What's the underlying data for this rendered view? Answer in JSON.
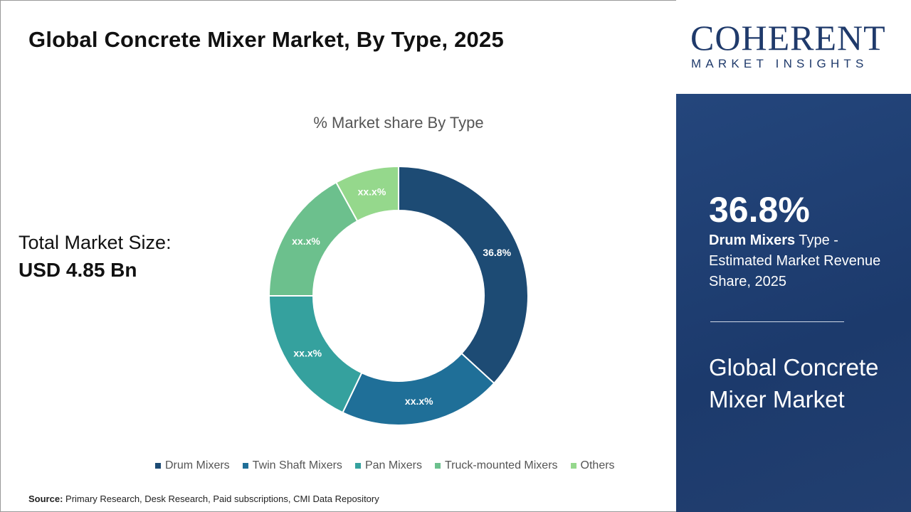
{
  "title": "Global Concrete Mixer Market, By Type, 2025",
  "market_size": {
    "label": "Total Market Size:",
    "value": "USD 4.85 Bn"
  },
  "chart_data": {
    "type": "pie",
    "donut": true,
    "title": "% Market share By Type",
    "categories": [
      "Drum Mixers",
      "Twin Shaft Mixers",
      "Pan Mixers",
      "Truck-mounted Mixers",
      "Others"
    ],
    "values": [
      36.8,
      20.3,
      17.9,
      17.0,
      8.0
    ],
    "data_labels": [
      "36.8%",
      "xx.x%",
      "xx.x%",
      "xx.x%",
      "xx.x%"
    ],
    "colors": [
      "#1d4b74",
      "#1f6f98",
      "#35a19e",
      "#6cc08d",
      "#95d88c"
    ],
    "legend": "bottom"
  },
  "source": {
    "label": "Source:",
    "text": "Primary Research, Desk Research, Paid subscriptions, CMI Data Repository"
  },
  "logo": {
    "top": "COHERENT",
    "bottom": "MARKET INSIGHTS"
  },
  "panel": {
    "stat": "36.8%",
    "stat_bold": "Drum Mixers",
    "stat_rest": " Type - Estimated Market Revenue Share, 2025",
    "title": "Global Concrete Mixer Market"
  }
}
